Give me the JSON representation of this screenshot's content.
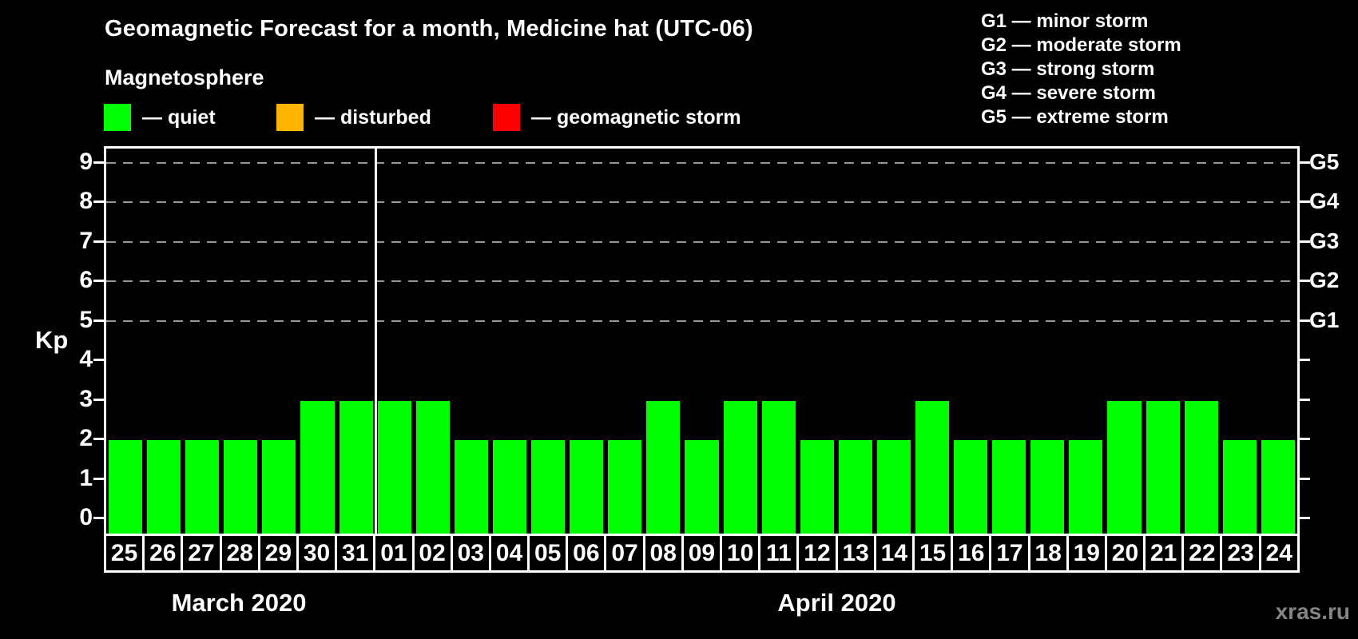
{
  "header": {
    "title": "Geomagnetic Forecast for a month, Medicine hat (UTC-06)",
    "subtitle": "Magnetosphere"
  },
  "magnetosphere_legend": [
    {
      "key": "quiet",
      "label": "— quiet",
      "color": "#00ff00"
    },
    {
      "key": "disturbed",
      "label": "— disturbed",
      "color": "#ffb400"
    },
    {
      "key": "storm",
      "label": "— geomagnetic storm",
      "color": "#ff0000"
    }
  ],
  "g_scale_legend": [
    "G1 — minor storm",
    "G2 — moderate storm",
    "G3 — strong storm",
    "G4 — severe storm",
    "G5 — extreme storm"
  ],
  "watermark": "xras.ru",
  "chart_data": {
    "type": "bar",
    "title": "Geomagnetic Forecast for a month, Medicine hat (UTC-06)",
    "ylabel": "Kp",
    "categories": [
      "25",
      "26",
      "27",
      "28",
      "29",
      "30",
      "31",
      "01",
      "02",
      "03",
      "04",
      "05",
      "06",
      "07",
      "08",
      "09",
      "10",
      "11",
      "12",
      "13",
      "14",
      "15",
      "16",
      "17",
      "18",
      "19",
      "20",
      "21",
      "22",
      "23",
      "24"
    ],
    "values": [
      2,
      2,
      2,
      2,
      2,
      3,
      3,
      3,
      3,
      2,
      2,
      2,
      2,
      2,
      3,
      2,
      3,
      3,
      2,
      2,
      2,
      3,
      2,
      2,
      2,
      2,
      3,
      3,
      3,
      2,
      2
    ],
    "bar_color": "#00ff00",
    "bar_color_meaning": "quiet",
    "months": [
      {
        "label": "March 2020",
        "days": 7
      },
      {
        "label": "April 2020",
        "days": 24
      }
    ],
    "y_ticks": [
      0,
      1,
      2,
      3,
      4,
      5,
      6,
      7,
      8,
      9
    ],
    "ylim": [
      -0.36,
      9.44
    ],
    "right_axis_labels": [
      {
        "kp": 5,
        "label": "G1"
      },
      {
        "kp": 6,
        "label": "G2"
      },
      {
        "kp": 7,
        "label": "G3"
      },
      {
        "kp": 8,
        "label": "G4"
      },
      {
        "kp": 9,
        "label": "G5"
      }
    ],
    "gridlines_at_kp": [
      5,
      6,
      7,
      8,
      9
    ],
    "grid": "horizontal-dashed",
    "gridline_color": "#979797",
    "legend_position": "top-left",
    "colors": {
      "quiet": "#00ff00",
      "disturbed": "#ffb400",
      "storm": "#ff0000"
    }
  }
}
